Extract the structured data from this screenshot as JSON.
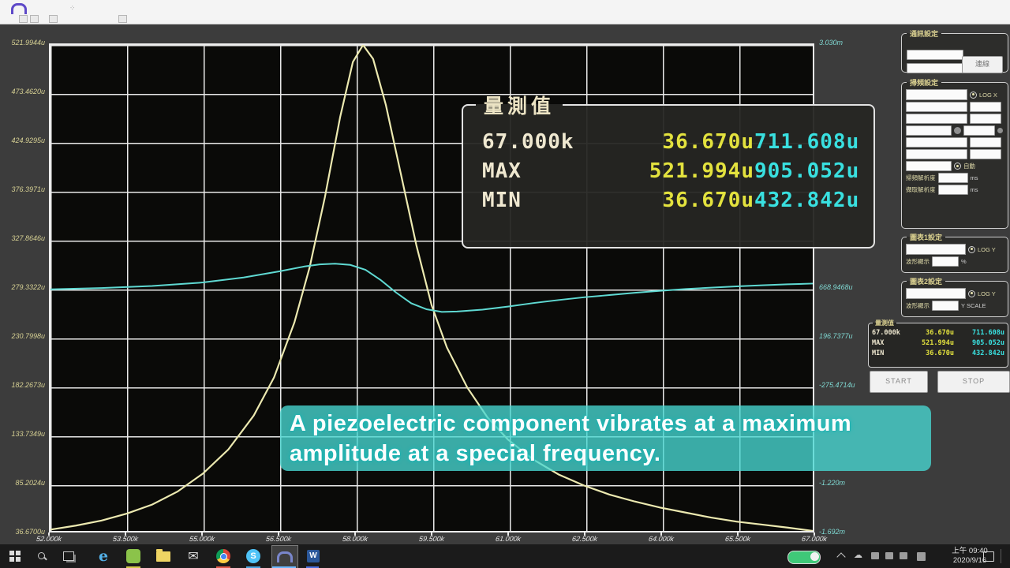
{
  "window": {
    "topbar_icon": "arch-logo"
  },
  "chart_data": {
    "type": "line",
    "title": "",
    "x_axis": {
      "label": "frequency",
      "min_khz": 52,
      "max_khz": 67,
      "tick_labels": [
        "52.000k",
        "53.500k",
        "55.000k",
        "56.500k",
        "58.000k",
        "59.500k",
        "61.000k",
        "62.500k",
        "64.000k",
        "65.500k",
        "67.000k"
      ]
    },
    "y_axis_left": {
      "unit": "u",
      "min": 36.67,
      "max": 521.9944,
      "color": "#d6d093",
      "tick_labels": [
        "521.9944u",
        "473.4620u",
        "424.9295u",
        "376.3971u",
        "327.8646u",
        "279.3322u",
        "230.7998u",
        "182.2673u",
        "133.7349u",
        "85.2024u",
        "36.6700u"
      ]
    },
    "y_axis_right": {
      "unit": "u",
      "min": -1692.1,
      "max": 3030,
      "color": "#7fd8d2",
      "visible_tick_labels": [
        {
          "line": 0,
          "text": "3.030m"
        },
        {
          "line": 5,
          "text": "668.9468u"
        },
        {
          "line": 6,
          "text": "196.7377u"
        },
        {
          "line": 7,
          "text": "-275.4714u"
        },
        {
          "line": 9,
          "text": "-1.220m"
        },
        {
          "line": 10,
          "text": "-1.692m"
        }
      ]
    },
    "grid": true,
    "legend_position": "none",
    "series": [
      {
        "name": "amplitude-resonance-curve",
        "axis": "left",
        "color": "#ece9b0",
        "x": [
          52,
          52.5,
          53,
          53.5,
          54,
          54.5,
          55,
          55.5,
          56,
          56.4,
          56.8,
          57.1,
          57.4,
          57.7,
          57.95,
          58.15,
          58.35,
          58.6,
          58.9,
          59.2,
          59.5,
          59.8,
          60.2,
          60.6,
          61,
          61.5,
          62,
          62.5,
          63,
          63.5,
          64,
          64.5,
          65,
          65.5,
          66,
          66.5,
          67
        ],
        "v": [
          38,
          42,
          47,
          54,
          63,
          76,
          94,
          118,
          152,
          190,
          245,
          300,
          370,
          450,
          505,
          522,
          508,
          462,
          392,
          322,
          262,
          220,
          180,
          150,
          128,
          108,
          93,
          82,
          73,
          66,
          60,
          55,
          50,
          46,
          43,
          40,
          36.7
        ]
      },
      {
        "name": "phase-curve",
        "axis": "right",
        "color": "#5fd9d2",
        "x": [
          52,
          53,
          54,
          55,
          55.8,
          56.5,
          57,
          57.3,
          57.6,
          57.9,
          58.2,
          58.5,
          58.8,
          59.1,
          59.4,
          59.7,
          60,
          60.5,
          61,
          61.5,
          62,
          62.5,
          63,
          63.5,
          64,
          64.5,
          65,
          65.5,
          66,
          66.5,
          67
        ],
        "v": [
          655,
          668,
          688,
          722,
          770,
          830,
          878,
          898,
          905,
          893,
          845,
          745,
          625,
          520,
          462,
          436,
          440,
          458,
          488,
          522,
          552,
          578,
          600,
          622,
          641,
          658,
          672,
          684,
          695,
          704,
          711.6
        ]
      }
    ]
  },
  "measurement_box": {
    "title": "量測值",
    "rows": [
      {
        "c1": "67.000k",
        "c2": "36.670u",
        "c3": "711.608u"
      },
      {
        "c1": "MAX",
        "c2": "521.994u",
        "c3": "905.052u"
      },
      {
        "c1": "MIN",
        "c2": "36.670u",
        "c3": "432.842u"
      }
    ]
  },
  "caption": {
    "line1": "A piezoelectric component vibrates at a maximum",
    "line2": "amplitude at a special frequency.",
    "bg_color": "#48d8d4"
  },
  "sidebar": {
    "comm_panel": {
      "title": "通訊設定",
      "connect_label": "連線"
    },
    "sweep_panel": {
      "title": "掃頻設定",
      "log_x": "LOG X",
      "auto_label": "自動",
      "res1_label": "掃頻解析度",
      "res2_label": "擷取解析度",
      "unit_ms": "ms"
    },
    "chart1_panel": {
      "title": "圖表1設定",
      "log_y": "LOG Y",
      "row_label": "波形顯示",
      "unit": "%"
    },
    "chart2_panel": {
      "title": "圖表2設定",
      "log_y": "LOG Y",
      "row_label": "波形顯示",
      "unit": "Y SCALE"
    },
    "mini_panel": {
      "title": "量測值"
    },
    "start_label": "START",
    "stop_label": "STOP"
  },
  "taskbar": {
    "clock_time": "上午 09:40",
    "clock_date": "2020/9/16",
    "icons": [
      "start",
      "search",
      "task-view",
      "edge",
      "line-app",
      "file-explorer",
      "mail",
      "chrome",
      "skype",
      "active-app",
      "word"
    ]
  },
  "colors": {
    "background": "#3c3c3c",
    "plot_bg": "#0a0a08",
    "grid": "#e9e9e9",
    "value_yellow": "#e3e23e",
    "value_cyan": "#39e0e0",
    "panel_title": "#d9cf8f"
  }
}
